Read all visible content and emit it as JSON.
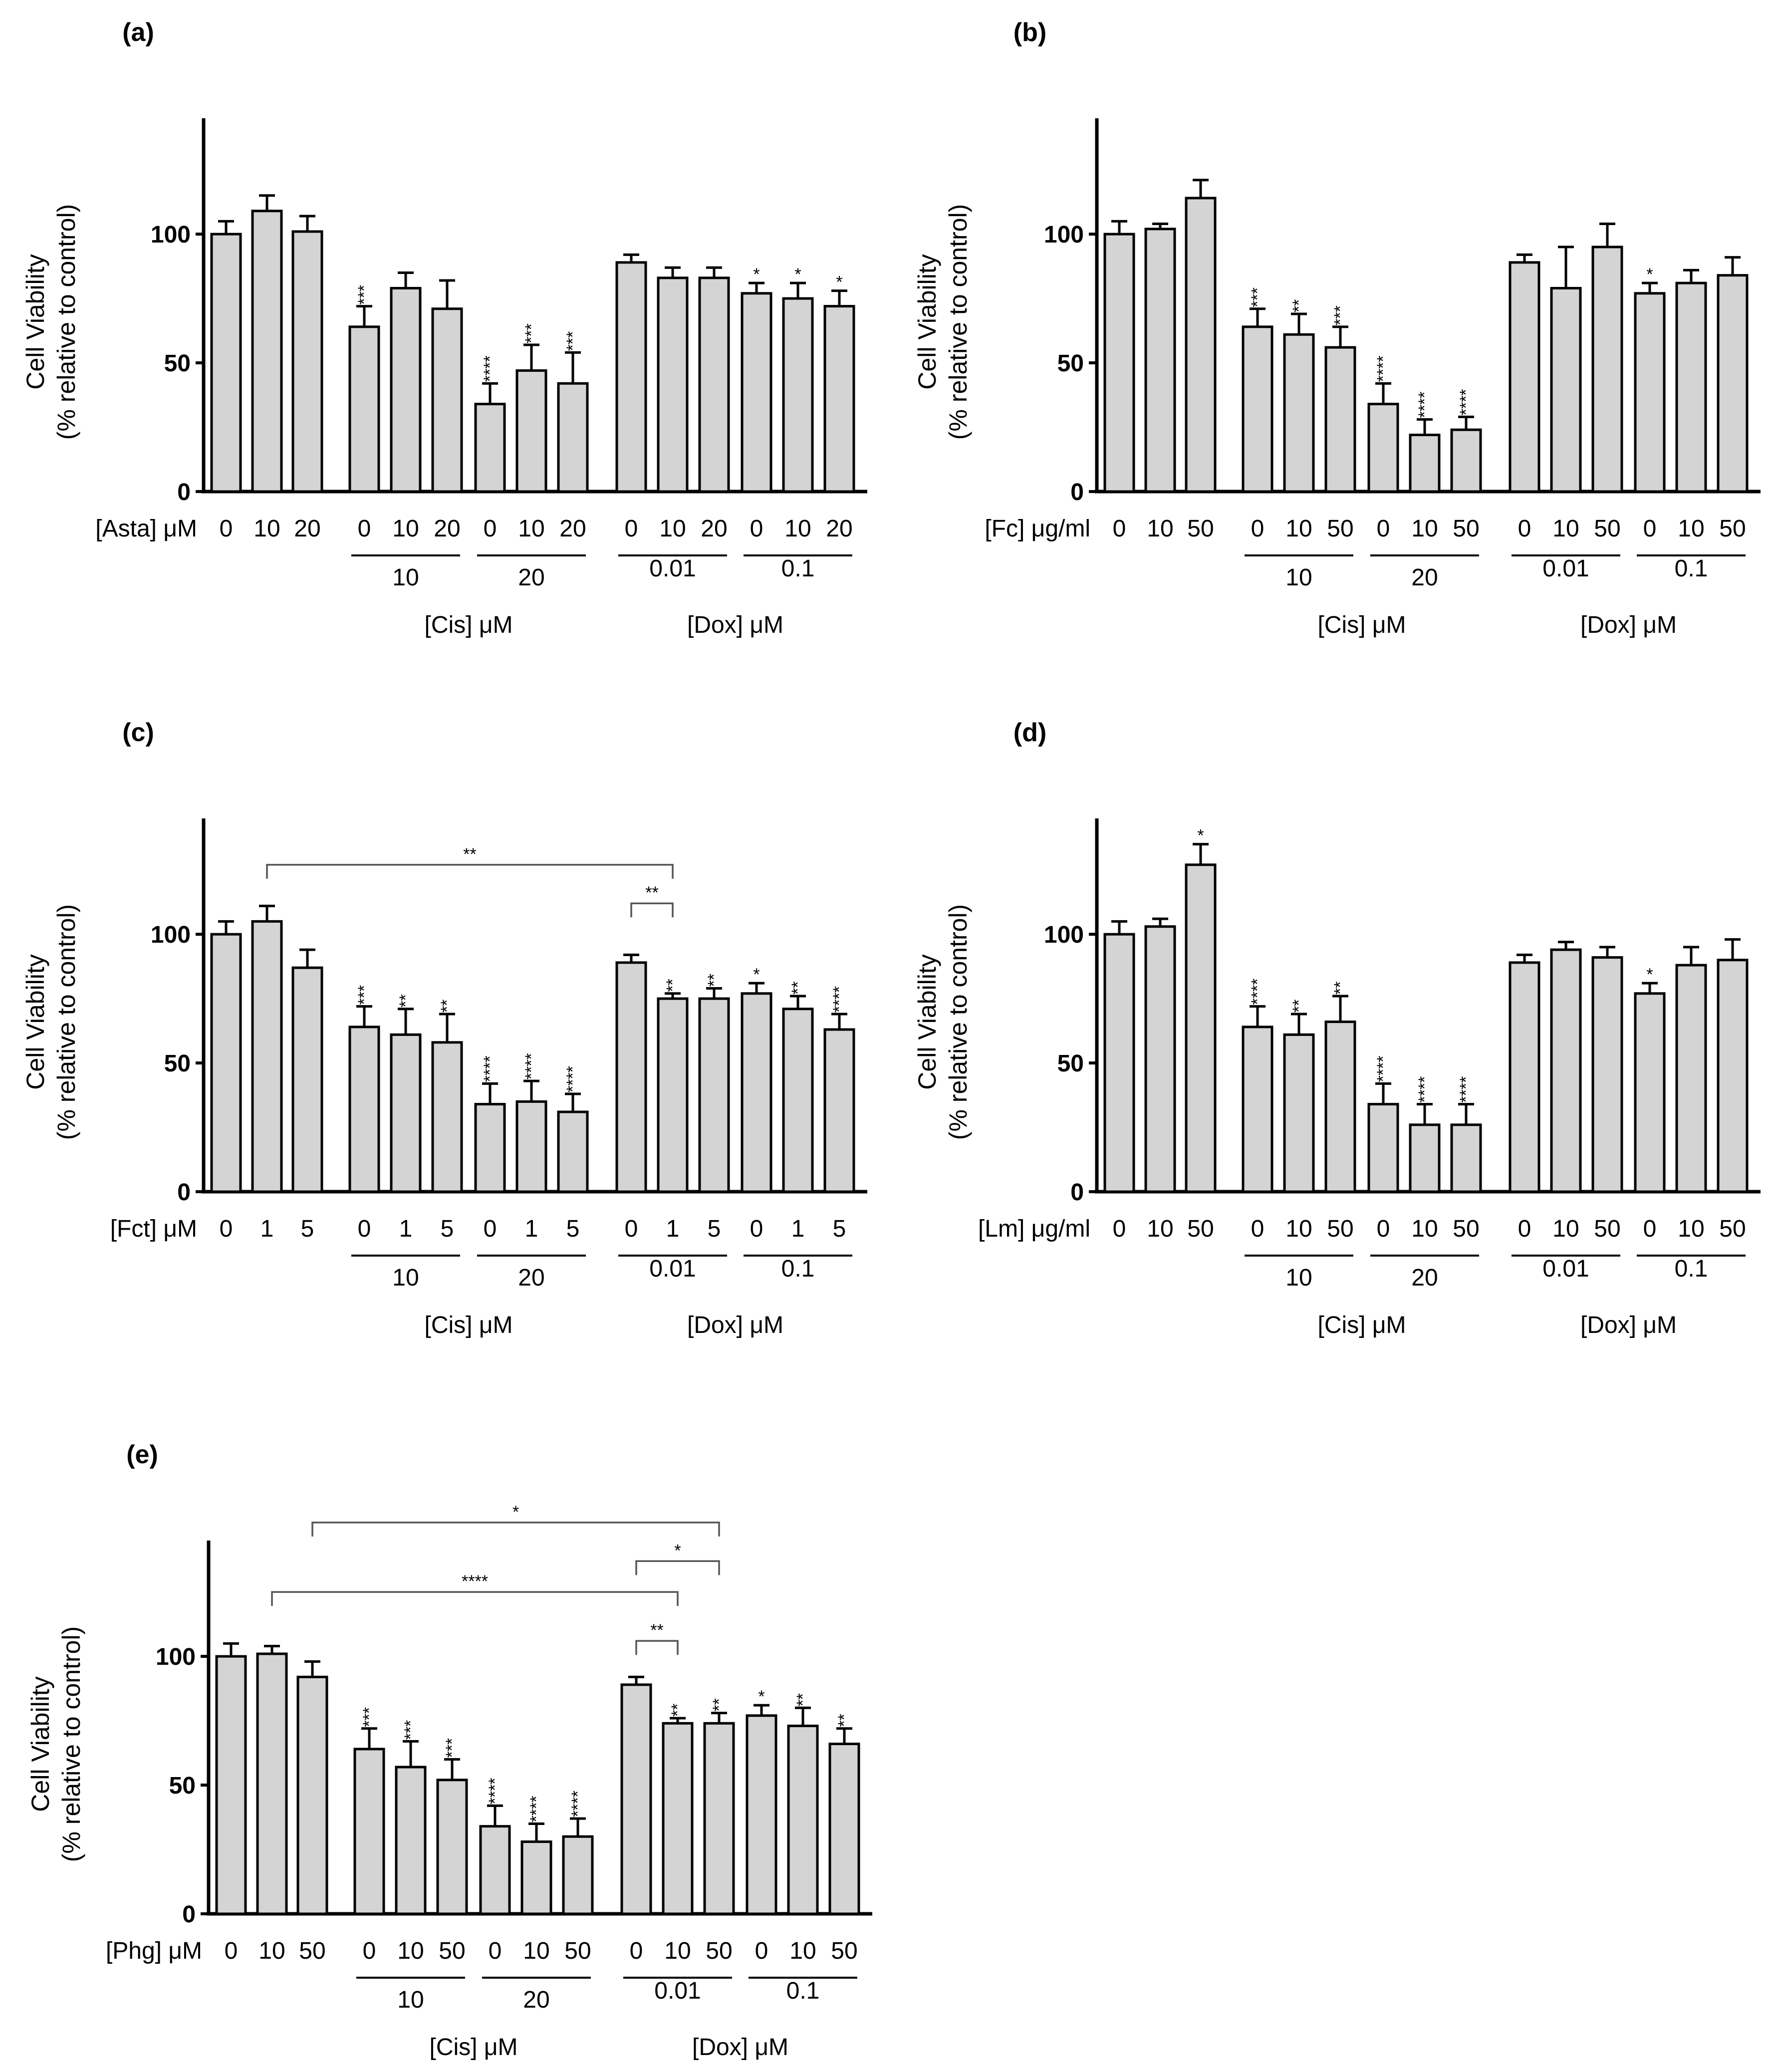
{
  "colors": {
    "bar_fill": "#d4d4d4",
    "stroke": "#000000",
    "bracket": "#555555"
  },
  "chart_data": [
    {
      "id": "a",
      "panel_label": "(a)",
      "type": "bar",
      "ylabel_line1": "Cell Viability",
      "ylabel_line2": "(% relative to control)",
      "ylim": [
        0,
        145
      ],
      "yticks": [
        0,
        50,
        100
      ],
      "xlabel": "[Asta] μM",
      "categories": [
        "0",
        "10",
        "20",
        "0",
        "10",
        "20",
        "0",
        "10",
        "20",
        "0",
        "10",
        "20",
        "0",
        "10",
        "20"
      ],
      "values": [
        100,
        109,
        101,
        64,
        79,
        71,
        34,
        47,
        42,
        89,
        83,
        83,
        77,
        75,
        72
      ],
      "errors": [
        5,
        6,
        6,
        8,
        6,
        11,
        8,
        10,
        12,
        3,
        4,
        4,
        4,
        6,
        6
      ],
      "significance": [
        "",
        "",
        "",
        "***",
        "",
        "",
        "****",
        "***",
        "***",
        "",
        "",
        "",
        "*",
        "*",
        "*"
      ],
      "groups": [
        {
          "label": "10",
          "from": 3,
          "to": 5
        },
        {
          "label": "20",
          "from": 6,
          "to": 8
        },
        {
          "label": "0.01",
          "from": 9,
          "to": 11
        },
        {
          "label": "0.1",
          "from": 12,
          "to": 14
        }
      ],
      "supergroups": [
        {
          "label": "[Cis] μM",
          "from": 3,
          "to": 8
        },
        {
          "label": "[Dox] μM",
          "from": 9,
          "to": 14
        }
      ],
      "brackets": []
    },
    {
      "id": "b",
      "panel_label": "(b)",
      "type": "bar",
      "ylabel_line1": "Cell Viability",
      "ylabel_line2": "(% relative to control)",
      "ylim": [
        0,
        145
      ],
      "yticks": [
        0,
        50,
        100
      ],
      "xlabel": "[Fc] μg/ml",
      "categories": [
        "0",
        "10",
        "50",
        "0",
        "10",
        "50",
        "0",
        "10",
        "50",
        "0",
        "10",
        "50",
        "0",
        "10",
        "50"
      ],
      "values": [
        100,
        102,
        114,
        64,
        61,
        56,
        34,
        22,
        24,
        89,
        79,
        95,
        77,
        81,
        84
      ],
      "errors": [
        5,
        2,
        7,
        7,
        8,
        8,
        8,
        6,
        5,
        3,
        16,
        9,
        4,
        5,
        7
      ],
      "significance": [
        "",
        "",
        "",
        "***",
        "**",
        "***",
        "****",
        "****",
        "****",
        "",
        "",
        "",
        "*",
        "",
        ""
      ],
      "groups": [
        {
          "label": "10",
          "from": 3,
          "to": 5
        },
        {
          "label": "20",
          "from": 6,
          "to": 8
        },
        {
          "label": "0.01",
          "from": 9,
          "to": 11
        },
        {
          "label": "0.1",
          "from": 12,
          "to": 14
        }
      ],
      "supergroups": [
        {
          "label": "[Cis] μM",
          "from": 3,
          "to": 8
        },
        {
          "label": "[Dox] μM",
          "from": 9,
          "to": 14
        }
      ],
      "brackets": []
    },
    {
      "id": "c",
      "panel_label": "(c)",
      "type": "bar",
      "ylabel_line1": "Cell Viability",
      "ylabel_line2": "(% relative to control)",
      "ylim": [
        0,
        145
      ],
      "yticks": [
        0,
        50,
        100
      ],
      "xlabel": "[Fct] μM",
      "categories": [
        "0",
        "1",
        "5",
        "0",
        "1",
        "5",
        "0",
        "1",
        "5",
        "0",
        "1",
        "5",
        "0",
        "1",
        "5"
      ],
      "values": [
        100,
        105,
        87,
        64,
        61,
        58,
        34,
        35,
        31,
        89,
        75,
        75,
        77,
        71,
        63
      ],
      "errors": [
        5,
        6,
        7,
        8,
        10,
        11,
        8,
        8,
        7,
        3,
        2,
        4,
        4,
        5,
        6
      ],
      "significance": [
        "",
        "",
        "",
        "***",
        "**",
        "**",
        "****",
        "****",
        "****",
        "",
        "**",
        "**",
        "*",
        "**",
        "****"
      ],
      "groups": [
        {
          "label": "10",
          "from": 3,
          "to": 5
        },
        {
          "label": "20",
          "from": 6,
          "to": 8
        },
        {
          "label": "0.01",
          "from": 9,
          "to": 11
        },
        {
          "label": "0.1",
          "from": 12,
          "to": 14
        }
      ],
      "supergroups": [
        {
          "label": "[Cis] μM",
          "from": 3,
          "to": 8
        },
        {
          "label": "[Dox] μM",
          "from": 9,
          "to": 14
        }
      ],
      "brackets": [
        {
          "from": 1,
          "to": 10,
          "y": 127,
          "label": "**"
        },
        {
          "from": 9,
          "to": 10,
          "y": 112,
          "label": "**"
        }
      ]
    },
    {
      "id": "d",
      "panel_label": "(d)",
      "type": "bar",
      "ylabel_line1": "Cell Viability",
      "ylabel_line2": "(% relative to control)",
      "ylim": [
        0,
        145
      ],
      "yticks": [
        0,
        50,
        100
      ],
      "xlabel": "[Lm] μg/ml",
      "categories": [
        "0",
        "10",
        "50",
        "0",
        "10",
        "50",
        "0",
        "10",
        "50",
        "0",
        "10",
        "50",
        "0",
        "10",
        "50"
      ],
      "values": [
        100,
        103,
        127,
        64,
        61,
        66,
        34,
        26,
        26,
        89,
        94,
        91,
        77,
        88,
        90
      ],
      "errors": [
        5,
        3,
        8,
        8,
        8,
        10,
        8,
        8,
        8,
        3,
        3,
        4,
        4,
        7,
        8
      ],
      "significance": [
        "",
        "",
        "*",
        "****",
        "**",
        "**",
        "****",
        "****",
        "****",
        "",
        "",
        "",
        "*",
        "",
        ""
      ],
      "groups": [
        {
          "label": "10",
          "from": 3,
          "to": 5
        },
        {
          "label": "20",
          "from": 6,
          "to": 8
        },
        {
          "label": "0.01",
          "from": 9,
          "to": 11
        },
        {
          "label": "0.1",
          "from": 12,
          "to": 14
        }
      ],
      "supergroups": [
        {
          "label": "[Cis] μM",
          "from": 3,
          "to": 8
        },
        {
          "label": "[Dox] μM",
          "from": 9,
          "to": 14
        }
      ],
      "brackets": []
    },
    {
      "id": "e",
      "panel_label": "(e)",
      "type": "bar",
      "ylabel_line1": "Cell Viability",
      "ylabel_line2": "(% relative to control)",
      "ylim": [
        0,
        145
      ],
      "yticks": [
        0,
        50,
        100
      ],
      "xlabel": "[Phg] μM",
      "categories": [
        "0",
        "10",
        "50",
        "0",
        "10",
        "50",
        "0",
        "10",
        "50",
        "0",
        "10",
        "50",
        "0",
        "10",
        "50"
      ],
      "values": [
        100,
        101,
        92,
        64,
        57,
        52,
        34,
        28,
        30,
        89,
        74,
        74,
        77,
        73,
        66
      ],
      "errors": [
        5,
        3,
        6,
        8,
        10,
        8,
        8,
        7,
        7,
        3,
        2,
        4,
        4,
        7,
        6
      ],
      "significance": [
        "",
        "",
        "",
        "***",
        "***",
        "***",
        "****",
        "****",
        "****",
        "",
        "**",
        "**",
        "*",
        "**",
        "**"
      ],
      "groups": [
        {
          "label": "10",
          "from": 3,
          "to": 5
        },
        {
          "label": "20",
          "from": 6,
          "to": 8
        },
        {
          "label": "0.01",
          "from": 9,
          "to": 11
        },
        {
          "label": "0.1",
          "from": 12,
          "to": 14
        }
      ],
      "supergroups": [
        {
          "label": "[Cis] μM",
          "from": 3,
          "to": 8
        },
        {
          "label": "[Dox] μM",
          "from": 9,
          "to": 14
        }
      ],
      "brackets": [
        {
          "from": 2,
          "to": 11,
          "y": 152,
          "label": "*"
        },
        {
          "from": 9,
          "to": 11,
          "y": 137,
          "label": "*"
        },
        {
          "from": 1,
          "to": 10,
          "y": 125,
          "label": "****"
        },
        {
          "from": 9,
          "to": 10,
          "y": 106,
          "label": "**"
        }
      ]
    }
  ]
}
